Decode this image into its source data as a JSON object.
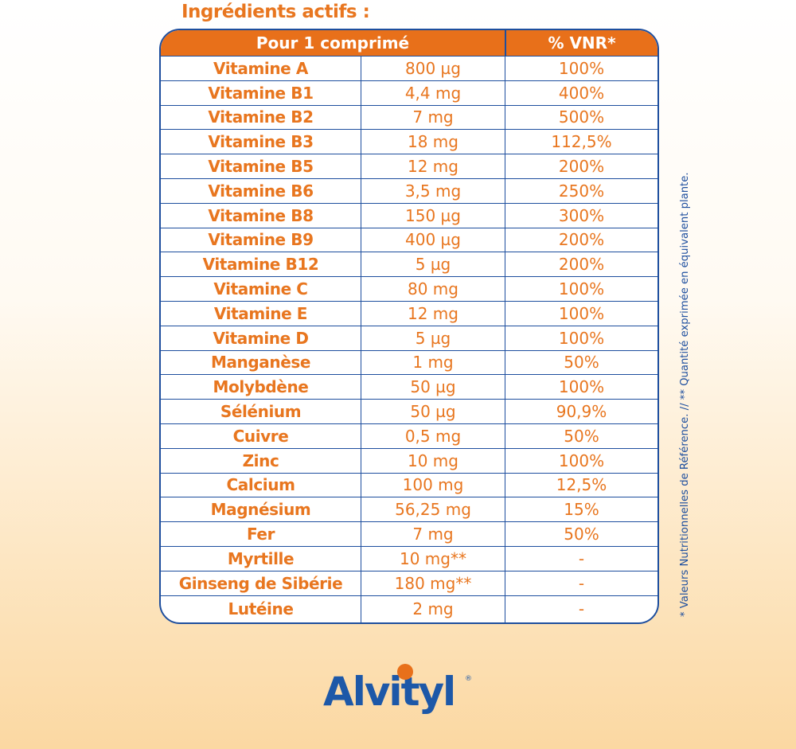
{
  "title": "Ingrédients actifs :",
  "table": {
    "headers": [
      "Pour 1 comprimé",
      "% VNR*"
    ],
    "rows": [
      {
        "name": "Vitamine A",
        "amount": "800 µg",
        "vnr": "100%"
      },
      {
        "name": "Vitamine B1",
        "amount": "4,4 mg",
        "vnr": "400%"
      },
      {
        "name": "Vitamine B2",
        "amount": "7 mg",
        "vnr": "500%"
      },
      {
        "name": "Vitamine B3",
        "amount": "18 mg",
        "vnr": "112,5%"
      },
      {
        "name": "Vitamine B5",
        "amount": "12 mg",
        "vnr": "200%"
      },
      {
        "name": "Vitamine B6",
        "amount": "3,5 mg",
        "vnr": "250%"
      },
      {
        "name": "Vitamine B8",
        "amount": "150 µg",
        "vnr": "300%"
      },
      {
        "name": "Vitamine B9",
        "amount": "400 µg",
        "vnr": "200%"
      },
      {
        "name": "Vitamine B12",
        "amount": "5 µg",
        "vnr": "200%"
      },
      {
        "name": "Vitamine C",
        "amount": "80 mg",
        "vnr": "100%"
      },
      {
        "name": "Vitamine E",
        "amount": "12 mg",
        "vnr": "100%"
      },
      {
        "name": "Vitamine D",
        "amount": "5 µg",
        "vnr": "100%"
      },
      {
        "name": "Manganèse",
        "amount": "1 mg",
        "vnr": "50%"
      },
      {
        "name": "Molybdène",
        "amount": "50 µg",
        "vnr": "100%"
      },
      {
        "name": "Sélénium",
        "amount": "50 µg",
        "vnr": "90,9%"
      },
      {
        "name": "Cuivre",
        "amount": "0,5 mg",
        "vnr": "50%"
      },
      {
        "name": "Zinc",
        "amount": "10 mg",
        "vnr": "100%"
      },
      {
        "name": "Calcium",
        "amount": "100 mg",
        "vnr": "12,5%"
      },
      {
        "name": "Magnésium",
        "amount": "56,25 mg",
        "vnr": "15%"
      },
      {
        "name": "Fer",
        "amount": "7 mg",
        "vnr": "50%"
      },
      {
        "name": "Myrtille",
        "amount": "10 mg**",
        "vnr": "-"
      },
      {
        "name": "Ginseng de Sibérie",
        "amount": "180 mg**",
        "vnr": "-"
      },
      {
        "name": "Lutéine",
        "amount": "2 mg",
        "vnr": "-"
      }
    ]
  },
  "footnote": "* Valeurs Nutritionnelles de Référence. // ** Quantité exprimée en équivalent plante.",
  "logo": {
    "text": "Alvityl",
    "mark": "®"
  },
  "colors": {
    "orange": "#e8701a",
    "blue": "#1d4e9e"
  }
}
